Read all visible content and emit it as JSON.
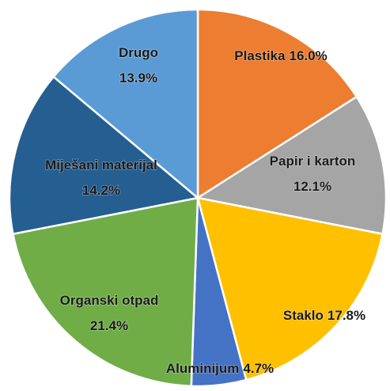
{
  "chart_data": {
    "type": "pie",
    "categories": [
      "Plastika",
      "Papir i karton",
      "Staklo",
      "Aluminijum",
      "Organski otpad",
      "Miješani materijal",
      "Drugo"
    ],
    "values": [
      16.0,
      12.1,
      17.8,
      4.7,
      21.4,
      14.2,
      13.9
    ],
    "value_labels": [
      "16.0%",
      "12.1%",
      "17.8%",
      "4.7%",
      "21.4%",
      "14.2%",
      "13.9%"
    ],
    "colors": [
      "#ed7d31",
      "#a5a5a5",
      "#ffc000",
      "#4472c4",
      "#70ad47",
      "#255e91",
      "#5b9bd5"
    ]
  }
}
